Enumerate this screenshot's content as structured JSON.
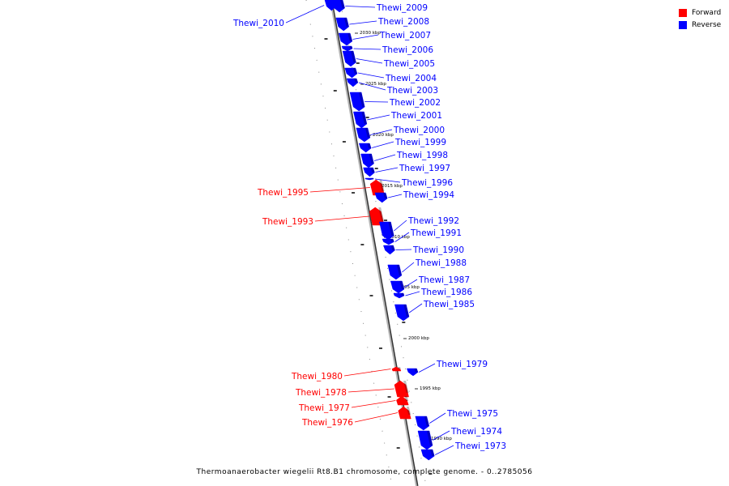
{
  "legend": {
    "forward_label": "Forward",
    "reverse_label": "Reverse",
    "forward_color": "#ff0000",
    "reverse_color": "#0000ff"
  },
  "caption": "Thermoanaerobacter wiegelii Rt8.B1 chromosome, complete genome. - 0..2785056",
  "ticks": [
    "2030 kbp",
    "2025 kbp",
    "2020 kbp",
    "2015 kbp",
    "2010 kbp",
    "2005 kbp",
    "2000 kbp",
    "1995 kbp",
    "1990 kbp"
  ],
  "genes": [
    {
      "name": "Thewi_2010",
      "strand": "reverse"
    },
    {
      "name": "Thewi_2009",
      "strand": "reverse"
    },
    {
      "name": "Thewi_2008",
      "strand": "reverse"
    },
    {
      "name": "Thewi_2007",
      "strand": "reverse"
    },
    {
      "name": "Thewi_2006",
      "strand": "reverse"
    },
    {
      "name": "Thewi_2005",
      "strand": "reverse"
    },
    {
      "name": "Thewi_2004",
      "strand": "reverse"
    },
    {
      "name": "Thewi_2003",
      "strand": "reverse"
    },
    {
      "name": "Thewi_2002",
      "strand": "reverse"
    },
    {
      "name": "Thewi_2001",
      "strand": "reverse"
    },
    {
      "name": "Thewi_2000",
      "strand": "reverse"
    },
    {
      "name": "Thewi_1999",
      "strand": "reverse"
    },
    {
      "name": "Thewi_1998",
      "strand": "reverse"
    },
    {
      "name": "Thewi_1997",
      "strand": "reverse"
    },
    {
      "name": "Thewi_1996",
      "strand": "reverse"
    },
    {
      "name": "Thewi_1995",
      "strand": "forward"
    },
    {
      "name": "Thewi_1994",
      "strand": "reverse"
    },
    {
      "name": "Thewi_1993",
      "strand": "forward"
    },
    {
      "name": "Thewi_1992",
      "strand": "reverse"
    },
    {
      "name": "Thewi_1991",
      "strand": "reverse"
    },
    {
      "name": "Thewi_1990",
      "strand": "reverse"
    },
    {
      "name": "Thewi_1988",
      "strand": "reverse"
    },
    {
      "name": "Thewi_1987",
      "strand": "reverse"
    },
    {
      "name": "Thewi_1986",
      "strand": "reverse"
    },
    {
      "name": "Thewi_1985",
      "strand": "reverse"
    },
    {
      "name": "Thewi_1979",
      "strand": "reverse"
    },
    {
      "name": "Thewi_1980",
      "strand": "forward"
    },
    {
      "name": "Thewi_1978",
      "strand": "forward"
    },
    {
      "name": "Thewi_1977",
      "strand": "forward"
    },
    {
      "name": "Thewi_1976",
      "strand": "forward"
    },
    {
      "name": "Thewi_1975",
      "strand": "reverse"
    },
    {
      "name": "Thewi_1974",
      "strand": "reverse"
    },
    {
      "name": "Thewi_1973",
      "strand": "reverse"
    }
  ]
}
